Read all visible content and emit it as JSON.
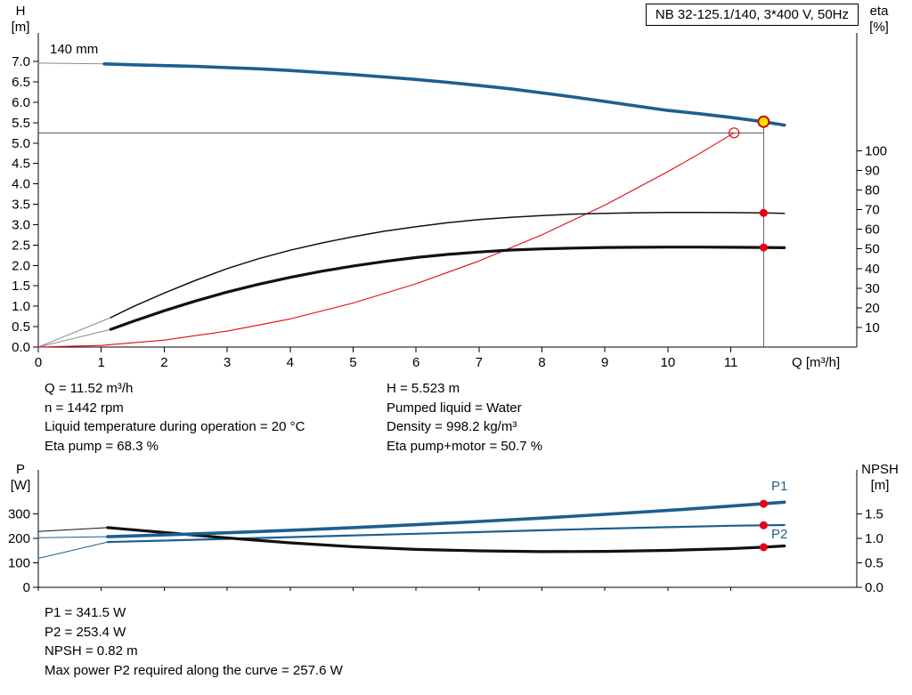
{
  "info_panels": {
    "qh": {
      "left": [
        "Q = 11.52 m³/h",
        "n = 1442 rpm",
        "Liquid temperature during operation = 20 °C",
        "Eta pump = 68.3 %"
      ],
      "right": [
        "H = 5.523 m",
        "Pumped liquid = Water",
        "Density = 998.2 kg/m³",
        "Eta pump+motor = 50.7 %"
      ]
    },
    "power": [
      "P1 = 341.5 W",
      "P2 = 253.4 W",
      "NPSH = 0.82 m",
      "Max power P2 required along the curve = 257.6 W"
    ]
  },
  "colors": {
    "curve_blue": "#1d5f8f",
    "curve_black": "#111111",
    "curve_red": "#e30613",
    "marker_red": "#e30613",
    "duty_yellow": "#ffdf00",
    "duty_ring": "#c00000",
    "lead_grey": "#8c8c8c",
    "guide_grey": "#3c3c3c"
  },
  "chart_data": [
    {
      "name": "qh-eta-chart",
      "type": "line",
      "title": "NB 32-125.1/140, 3*400 V, 50Hz",
      "annotations": {
        "impeller": "140 mm"
      },
      "x_axis": {
        "label": "Q [m³/h]",
        "min": 0,
        "max": 13,
        "ticks": [
          [
            0,
            "0"
          ],
          [
            1,
            "1"
          ],
          [
            2,
            "2"
          ],
          [
            3,
            "3"
          ],
          [
            4,
            "4"
          ],
          [
            5,
            "5"
          ],
          [
            6,
            "6"
          ],
          [
            7,
            "7"
          ],
          [
            8,
            "8"
          ],
          [
            9,
            "9"
          ],
          [
            10,
            "10"
          ],
          [
            11,
            "11"
          ]
        ]
      },
      "left_axis": {
        "title": [
          "H",
          "[m]"
        ],
        "min": 0,
        "max": 7.7,
        "ticks": [
          [
            0,
            "0.0"
          ],
          [
            0.5,
            "0.5"
          ],
          [
            1,
            "1.0"
          ],
          [
            1.5,
            "1.5"
          ],
          [
            2,
            "2.0"
          ],
          [
            2.5,
            "2.5"
          ],
          [
            3,
            "3.0"
          ],
          [
            3.5,
            "3.5"
          ],
          [
            4,
            "4.0"
          ],
          [
            4.5,
            "4.5"
          ],
          [
            5,
            "5.0"
          ],
          [
            5.5,
            "5.5"
          ],
          [
            6,
            "6.0"
          ],
          [
            6.5,
            "6.5"
          ],
          [
            7,
            "7.0"
          ]
        ]
      },
      "right_axis": {
        "title": [
          "eta",
          "[%]"
        ],
        "min": 0,
        "max": 160,
        "ticks": [
          [
            10,
            "10"
          ],
          [
            20,
            "20"
          ],
          [
            30,
            "30"
          ],
          [
            40,
            "40"
          ],
          [
            50,
            "50"
          ],
          [
            60,
            "60"
          ],
          [
            70,
            "70"
          ],
          [
            80,
            "80"
          ],
          [
            90,
            "90"
          ],
          [
            100,
            "100"
          ]
        ]
      },
      "series": [
        {
          "name": "qh-lead-line",
          "axis": "left",
          "color": "#8c8c8c",
          "width": 1,
          "points": [
            [
              0,
              6.96
            ],
            [
              1.05,
              6.94
            ]
          ]
        },
        {
          "name": "eta-pump-lead-line",
          "axis": "right",
          "color": "#8c8c8c",
          "width": 1,
          "points": [
            [
              0,
              0
            ],
            [
              1.15,
              15
            ]
          ]
        },
        {
          "name": "eta-pump-motor-lead-line",
          "axis": "right",
          "color": "#8c8c8c",
          "width": 1,
          "points": [
            [
              0,
              0
            ],
            [
              1.15,
              9
            ]
          ]
        },
        {
          "name": "system-curve",
          "axis": "left",
          "color": "#e30613",
          "width": 1.1,
          "points": [
            [
              0,
              0
            ],
            [
              1,
              0.04
            ],
            [
              2,
              0.17
            ],
            [
              3,
              0.39
            ],
            [
              4,
              0.69
            ],
            [
              5,
              1.08
            ],
            [
              6,
              1.55
            ],
            [
              7,
              2.11
            ],
            [
              8,
              2.75
            ],
            [
              9,
              3.48
            ],
            [
              10,
              4.3
            ],
            [
              10.5,
              4.74
            ],
            [
              11.05,
              5.25
            ]
          ]
        },
        {
          "name": "eta-pump-curve",
          "axis": "right",
          "color": "#111111",
          "width": 1.5,
          "points": [
            [
              1.15,
              15
            ],
            [
              1.5,
              20.5
            ],
            [
              2,
              27.5
            ],
            [
              2.5,
              34
            ],
            [
              3,
              40
            ],
            [
              3.5,
              45
            ],
            [
              4,
              49.3
            ],
            [
              4.5,
              53
            ],
            [
              5,
              56.2
            ],
            [
              5.5,
              59
            ],
            [
              6,
              61.3
            ],
            [
              6.5,
              63.3
            ],
            [
              7,
              64.9
            ],
            [
              7.5,
              66.1
            ],
            [
              8,
              67
            ],
            [
              8.5,
              67.7
            ],
            [
              9,
              68.1
            ],
            [
              9.5,
              68.4
            ],
            [
              10,
              68.6
            ],
            [
              10.5,
              68.6
            ],
            [
              11,
              68.5
            ],
            [
              11.52,
              68.3
            ],
            [
              11.85,
              68.1
            ]
          ]
        },
        {
          "name": "eta-pump-motor-curve",
          "axis": "right",
          "color": "#111111",
          "width": 3.2,
          "points": [
            [
              1.15,
              9
            ],
            [
              1.5,
              13
            ],
            [
              2,
              18.5
            ],
            [
              2.5,
              23.5
            ],
            [
              3,
              28
            ],
            [
              3.5,
              32
            ],
            [
              4,
              35.5
            ],
            [
              4.5,
              38.6
            ],
            [
              5,
              41.3
            ],
            [
              5.5,
              43.6
            ],
            [
              6,
              45.6
            ],
            [
              6.5,
              47.2
            ],
            [
              7,
              48.4
            ],
            [
              7.5,
              49.4
            ],
            [
              8,
              50
            ],
            [
              8.5,
              50.4
            ],
            [
              9,
              50.7
            ],
            [
              9.5,
              50.8
            ],
            [
              10,
              50.9
            ],
            [
              10.5,
              50.9
            ],
            [
              11,
              50.8
            ],
            [
              11.52,
              50.7
            ],
            [
              11.85,
              50.6
            ]
          ]
        },
        {
          "name": "qh-curve-140mm",
          "axis": "left",
          "color": "#1d5f8f",
          "width": 3.6,
          "points": [
            [
              1.05,
              6.94
            ],
            [
              1.5,
              6.92
            ],
            [
              2,
              6.9
            ],
            [
              2.5,
              6.88
            ],
            [
              3,
              6.85
            ],
            [
              3.5,
              6.82
            ],
            [
              4,
              6.78
            ],
            [
              4.5,
              6.73
            ],
            [
              5,
              6.68
            ],
            [
              5.5,
              6.62
            ],
            [
              6,
              6.56
            ],
            [
              6.5,
              6.49
            ],
            [
              7,
              6.41
            ],
            [
              7.5,
              6.33
            ],
            [
              8,
              6.23
            ],
            [
              8.5,
              6.13
            ],
            [
              9,
              6.02
            ],
            [
              9.5,
              5.91
            ],
            [
              10,
              5.8
            ],
            [
              10.5,
              5.72
            ],
            [
              11,
              5.63
            ],
            [
              11.52,
              5.523
            ],
            [
              11.85,
              5.44
            ]
          ]
        }
      ],
      "guides": [
        {
          "type": "h",
          "axis": "left",
          "v": 5.25,
          "q1": 0,
          "q2": 11.52
        },
        {
          "type": "v",
          "axis": "left",
          "q": 11.52,
          "v1": 0,
          "v2": 5.523
        }
      ],
      "markers": [
        {
          "name": "system-intersection-point",
          "axis": "left",
          "q": 11.05,
          "v": 5.25,
          "r": 5.5,
          "fill": "none",
          "stroke": "#e30613",
          "sw": 1.2
        },
        {
          "name": "eta-pump-duty-point",
          "axis": "right",
          "q": 11.52,
          "v": 68.3,
          "r": 4.5,
          "fill": "#e30613",
          "stroke": "none",
          "sw": 0
        },
        {
          "name": "eta-pump-motor-duty-point",
          "axis": "right",
          "q": 11.52,
          "v": 50.7,
          "r": 4.5,
          "fill": "#e30613",
          "stroke": "none",
          "sw": 0
        },
        {
          "name": "duty-point",
          "axis": "left",
          "q": 11.52,
          "v": 5.523,
          "r": 6,
          "fill": "#ffdf00",
          "stroke": "#c00000",
          "sw": 1.8
        }
      ]
    },
    {
      "name": "power-npsh-chart",
      "type": "line",
      "title": "",
      "annotations": {
        "p1": "P1",
        "p2": "P2"
      },
      "x_axis": {
        "label": "",
        "min": 0,
        "max": 13,
        "ticks": [
          [
            0,
            ""
          ],
          [
            1,
            ""
          ],
          [
            2,
            ""
          ],
          [
            3,
            ""
          ],
          [
            4,
            ""
          ],
          [
            5,
            ""
          ],
          [
            6,
            ""
          ],
          [
            7,
            ""
          ],
          [
            8,
            ""
          ],
          [
            9,
            ""
          ],
          [
            10,
            ""
          ],
          [
            11,
            ""
          ]
        ]
      },
      "left_axis": {
        "title": [
          "P",
          "[W]"
        ],
        "min": 0,
        "max": 480,
        "ticks": [
          [
            0,
            "0"
          ],
          [
            100,
            "100"
          ],
          [
            200,
            "200"
          ],
          [
            300,
            "300"
          ]
        ]
      },
      "right_axis": {
        "title": [
          "NPSH",
          "[m]"
        ],
        "min": 0,
        "max": 2.4,
        "ticks": [
          [
            0,
            "0.0"
          ],
          [
            0.5,
            "0.5"
          ],
          [
            1,
            "1.0"
          ],
          [
            1.5,
            "1.5"
          ]
        ]
      },
      "series": [
        {
          "name": "p1-lead-line",
          "axis": "left",
          "color": "#1d5f8f",
          "width": 1,
          "points": [
            [
              0,
              203
            ],
            [
              1.1,
              207
            ]
          ]
        },
        {
          "name": "p2-lead-line",
          "axis": "left",
          "color": "#1d5f8f",
          "width": 1,
          "points": [
            [
              0,
              118
            ],
            [
              1.1,
              185
            ]
          ]
        },
        {
          "name": "npsh-lead-line",
          "axis": "right",
          "color": "#111111",
          "width": 1,
          "points": [
            [
              0,
              1.14
            ],
            [
              1.1,
              1.22
            ]
          ]
        },
        {
          "name": "p2-curve",
          "axis": "left",
          "color": "#1d5f8f",
          "width": 2.2,
          "points": [
            [
              1.1,
              185
            ],
            [
              2,
              191
            ],
            [
              3,
              198
            ],
            [
              4,
              205
            ],
            [
              5,
              212
            ],
            [
              6,
              219
            ],
            [
              7,
              226
            ],
            [
              8,
              233
            ],
            [
              9,
              240
            ],
            [
              10,
              246
            ],
            [
              11,
              251.5
            ],
            [
              11.52,
              253.4
            ],
            [
              11.85,
              254.5
            ]
          ]
        },
        {
          "name": "npsh-curve",
          "axis": "right",
          "color": "#111111",
          "width": 3.2,
          "points": [
            [
              1.1,
              1.22
            ],
            [
              2,
              1.12
            ],
            [
              3,
              1.01
            ],
            [
              4,
              0.91
            ],
            [
              5,
              0.83
            ],
            [
              6,
              0.775
            ],
            [
              7,
              0.745
            ],
            [
              8,
              0.73
            ],
            [
              9,
              0.735
            ],
            [
              10,
              0.755
            ],
            [
              11,
              0.79
            ],
            [
              11.52,
              0.82
            ],
            [
              11.85,
              0.845
            ]
          ]
        },
        {
          "name": "p1-curve",
          "axis": "left",
          "color": "#1d5f8f",
          "width": 3.6,
          "points": [
            [
              1.1,
              207
            ],
            [
              2,
              214
            ],
            [
              3,
              223
            ],
            [
              4,
              233
            ],
            [
              5,
              244
            ],
            [
              6,
              256
            ],
            [
              7,
              269
            ],
            [
              8,
              283
            ],
            [
              9,
              298
            ],
            [
              10,
              314
            ],
            [
              11,
              332
            ],
            [
              11.52,
              341.5
            ],
            [
              11.85,
              348
            ]
          ]
        }
      ],
      "guides": [],
      "markers": [
        {
          "name": "p1-duty-point",
          "axis": "left",
          "q": 11.52,
          "v": 341.5,
          "r": 4.5,
          "fill": "#e30613",
          "stroke": "none",
          "sw": 0
        },
        {
          "name": "p2-duty-point",
          "axis": "left",
          "q": 11.52,
          "v": 253.4,
          "r": 4.5,
          "fill": "#e30613",
          "stroke": "none",
          "sw": 0
        },
        {
          "name": "npsh-duty-point",
          "axis": "right",
          "q": 11.52,
          "v": 0.82,
          "r": 4.5,
          "fill": "#e30613",
          "stroke": "none",
          "sw": 0
        }
      ]
    }
  ]
}
